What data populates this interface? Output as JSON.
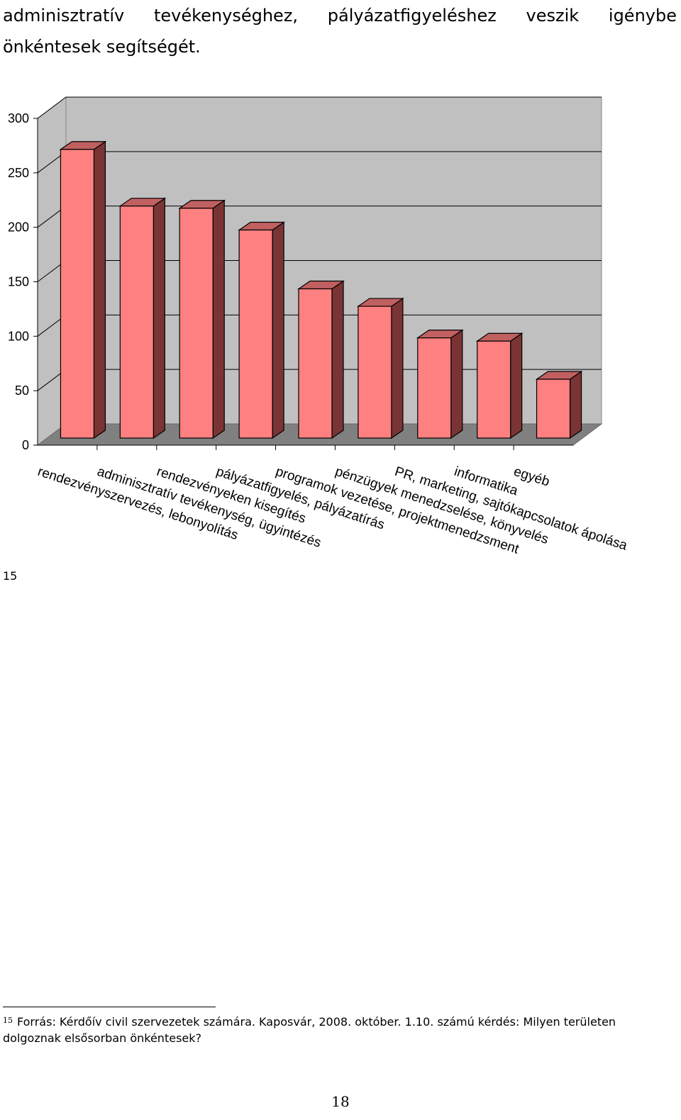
{
  "intro": {
    "words": [
      "adminisztratív",
      "tevékenységhez,",
      "pályázatfigyeléshez",
      "veszik",
      "igénybe"
    ],
    "line2": "önkéntesek segítségét."
  },
  "footnote": {
    "marker": "15",
    "number": "15",
    "text": "Forrás: Kérdőív civil szervezetek számára. Kaposvár, 2008. október. 1.10. számú kérdés: Milyen területen dolgoznak elsősorban önkéntesek?"
  },
  "page_number": "18",
  "colors": {
    "bar_front": "#ff8080",
    "bar_top": "#c06060",
    "bar_side": "#7a3434",
    "wall": "#c0c0c0",
    "floor": "#808080",
    "gridline": "#000000"
  },
  "chart_data": {
    "type": "bar",
    "style": "3d-column",
    "categories": [
      "rendezvényszervezés, lebonyolítás",
      "adminisztratív tevékenység, ügyintézés",
      "rendezvényeken kisegítés",
      "pályázatfigyelés, pályázatírás",
      "programok vezetése, projektmenedzsment",
      "pénzügyek menedzselése, könyvelés",
      "PR, marketing, sajtókapcsolatok ápolása",
      "informatika",
      "egyéb"
    ],
    "values": [
      265,
      213,
      211,
      191,
      137,
      121,
      92,
      89,
      54
    ],
    "ylim": [
      0,
      300
    ],
    "yticks": [
      "0",
      "50",
      "100",
      "150",
      "200",
      "250",
      "300"
    ],
    "grid": true,
    "legend": false
  }
}
